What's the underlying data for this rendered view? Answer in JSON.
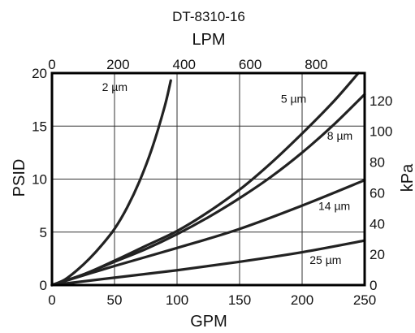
{
  "chart_data": {
    "type": "line",
    "title": "DT-8310-16",
    "xlabel": "GPM",
    "ylabel": "PSID",
    "x2label": "LPM",
    "y2label": "kPa",
    "xlim": [
      0,
      250
    ],
    "ylim": [
      0,
      20
    ],
    "x2lim": [
      0,
      946.35
    ],
    "y2lim": [
      0,
      137.9
    ],
    "grid": true,
    "x_ticks": [
      "0",
      "50",
      "100",
      "150",
      "200",
      "250"
    ],
    "y_ticks": [
      "0",
      "5",
      "10",
      "15",
      "20"
    ],
    "x2_ticks": [
      {
        "label": "0",
        "value": 0
      },
      {
        "label": "200",
        "value": 200
      },
      {
        "label": "400",
        "value": 400
      },
      {
        "label": "600",
        "value": 600
      },
      {
        "label": "800",
        "value": 800
      }
    ],
    "y2_ticks": [
      {
        "label": "0",
        "value": 0
      },
      {
        "label": "20",
        "value": 20
      },
      {
        "label": "40",
        "value": 40
      },
      {
        "label": "60",
        "value": 60
      },
      {
        "label": "80",
        "value": 80
      },
      {
        "label": "100",
        "value": 100
      },
      {
        "label": "120",
        "value": 120
      }
    ],
    "series": [
      {
        "name": "2 µm",
        "x": [
          0,
          10,
          20,
          30,
          40,
          50,
          60,
          70,
          80,
          90,
          95
        ],
        "y": [
          0,
          0.5,
          1.4,
          2.5,
          3.8,
          5.3,
          7.3,
          9.8,
          12.9,
          16.8,
          19.3
        ]
      },
      {
        "name": "5 µm",
        "x": [
          0,
          25,
          50,
          75,
          100,
          125,
          150,
          175,
          200,
          225,
          245
        ],
        "y": [
          0,
          1.0,
          2.3,
          3.7,
          5.1,
          6.9,
          9.0,
          11.5,
          14.3,
          17.3,
          20.0
        ]
      },
      {
        "name": "8 µm",
        "x": [
          0,
          25,
          50,
          75,
          100,
          125,
          150,
          175,
          200,
          225,
          250
        ],
        "y": [
          0,
          1.0,
          2.2,
          3.4,
          4.8,
          6.4,
          8.2,
          10.2,
          12.5,
          15.1,
          18.0
        ]
      },
      {
        "name": "14 µm",
        "x": [
          0,
          50,
          100,
          150,
          200,
          250
        ],
        "y": [
          0,
          1.8,
          3.5,
          5.3,
          7.5,
          9.9
        ]
      },
      {
        "name": "25 µm",
        "x": [
          0,
          50,
          100,
          150,
          200,
          250
        ],
        "y": [
          0,
          0.7,
          1.4,
          2.2,
          3.1,
          4.2
        ]
      }
    ]
  }
}
